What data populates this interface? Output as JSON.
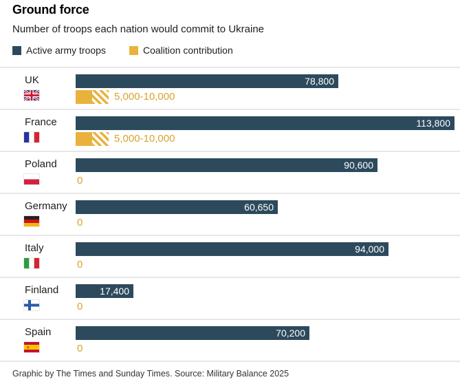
{
  "header": {
    "title": "Ground force",
    "subtitle": "Number of troops each nation would commit to Ukraine"
  },
  "legend": {
    "items": [
      {
        "label": "Active army troops",
        "color": "#2d4a5d"
      },
      {
        "label": "Coalition contribution",
        "color": "#e9b23c"
      }
    ]
  },
  "colors": {
    "active_bar": "#2d4a5d",
    "coalition_bar": "#e9b23c",
    "coalition_text": "#d9a32e",
    "divider": "#e7e7e7"
  },
  "chart_data": {
    "type": "bar",
    "orientation": "horizontal",
    "xlim": [
      0,
      113800
    ],
    "categories": [
      "UK",
      "France",
      "Poland",
      "Germany",
      "Italy",
      "Finland",
      "Spain"
    ],
    "series": [
      {
        "name": "Active army troops",
        "values": [
          78800,
          113800,
          90600,
          60650,
          94000,
          17400,
          70200
        ]
      },
      {
        "name": "Coalition contribution",
        "ranges": [
          [
            5000,
            10000
          ],
          [
            5000,
            10000
          ],
          [
            0,
            0
          ],
          [
            0,
            0
          ],
          [
            0,
            0
          ],
          [
            0,
            0
          ],
          [
            0,
            0
          ]
        ]
      }
    ],
    "rows": [
      {
        "country": "UK",
        "flag": "gb",
        "active": 78800,
        "active_label": "78,800",
        "coalition_min": 5000,
        "coalition_max": 10000,
        "coalition_label": "5,000-10,000"
      },
      {
        "country": "France",
        "flag": "fr",
        "active": 113800,
        "active_label": "113,800",
        "coalition_min": 5000,
        "coalition_max": 10000,
        "coalition_label": "5,000-10,000"
      },
      {
        "country": "Poland",
        "flag": "pl",
        "active": 90600,
        "active_label": "90,600",
        "coalition_min": 0,
        "coalition_max": 0,
        "coalition_label": "0"
      },
      {
        "country": "Germany",
        "flag": "de",
        "active": 60650,
        "active_label": "60,650",
        "coalition_min": 0,
        "coalition_max": 0,
        "coalition_label": "0"
      },
      {
        "country": "Italy",
        "flag": "it",
        "active": 94000,
        "active_label": "94,000",
        "coalition_min": 0,
        "coalition_max": 0,
        "coalition_label": "0"
      },
      {
        "country": "Finland",
        "flag": "fi",
        "active": 17400,
        "active_label": "17,400",
        "coalition_min": 0,
        "coalition_max": 0,
        "coalition_label": "0"
      },
      {
        "country": "Spain",
        "flag": "es",
        "active": 70200,
        "active_label": "70,200",
        "coalition_min": 0,
        "coalition_max": 0,
        "coalition_label": "0"
      }
    ]
  },
  "footer": {
    "credit": "Graphic by The Times and Sunday Times. Source: Military Balance 2025"
  }
}
